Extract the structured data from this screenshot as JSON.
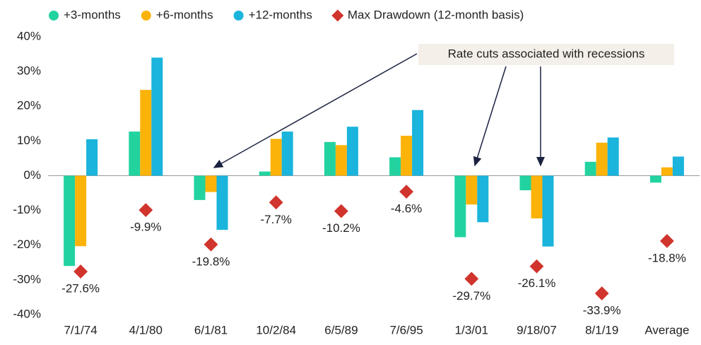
{
  "chart_data": {
    "type": "bar",
    "categories": [
      "7/1/74",
      "4/1/80",
      "6/1/81",
      "10/2/84",
      "6/5/89",
      "7/6/95",
      "1/3/01",
      "9/18/07",
      "8/1/19",
      "Average"
    ],
    "series": [
      {
        "name": "+3-months",
        "color": "#22d3a0",
        "values": [
          -26.0,
          12.7,
          -7.0,
          1.2,
          9.7,
          5.3,
          -17.7,
          -4.2,
          4.0,
          -2.0
        ]
      },
      {
        "name": "+6-months",
        "color": "#fbb30a",
        "values": [
          -20.3,
          24.7,
          -4.7,
          10.6,
          8.8,
          11.5,
          -8.3,
          -12.3,
          9.5,
          2.4
        ]
      },
      {
        "name": "+12-months",
        "color": "#1ab4dc",
        "values": [
          10.5,
          34.0,
          -15.6,
          12.7,
          14.1,
          18.9,
          -13.4,
          -20.4,
          11.0,
          5.5
        ]
      },
      {
        "name": "Max Drawdown (12-month basis)",
        "color": "#d0342c",
        "type": "scatter",
        "values": [
          -27.6,
          -9.9,
          -19.8,
          -7.7,
          -10.2,
          -4.6,
          -29.7,
          -26.1,
          -33.9,
          -18.8
        ],
        "value_labels": [
          "-27.6%",
          "-9.9%",
          "-19.8%",
          "-7.7%",
          "-10.2%",
          "-4.6%",
          "-29.7%",
          "-26.1%",
          "-33.9%",
          "-18.8%"
        ]
      }
    ],
    "ylim": [
      -40,
      40
    ],
    "yticks": [
      {
        "value": 40,
        "label": "40%"
      },
      {
        "value": 30,
        "label": "30%"
      },
      {
        "value": 20,
        "label": "20%"
      },
      {
        "value": 10,
        "label": "10%"
      },
      {
        "value": 0,
        "label": "0%"
      },
      {
        "value": -10,
        "label": "-10%"
      },
      {
        "value": -20,
        "label": "-20%"
      },
      {
        "value": -30,
        "label": "-30%"
      },
      {
        "value": -40,
        "label": "-40%"
      }
    ],
    "annotation": "Rate cuts associated with recessions",
    "grid": false
  }
}
